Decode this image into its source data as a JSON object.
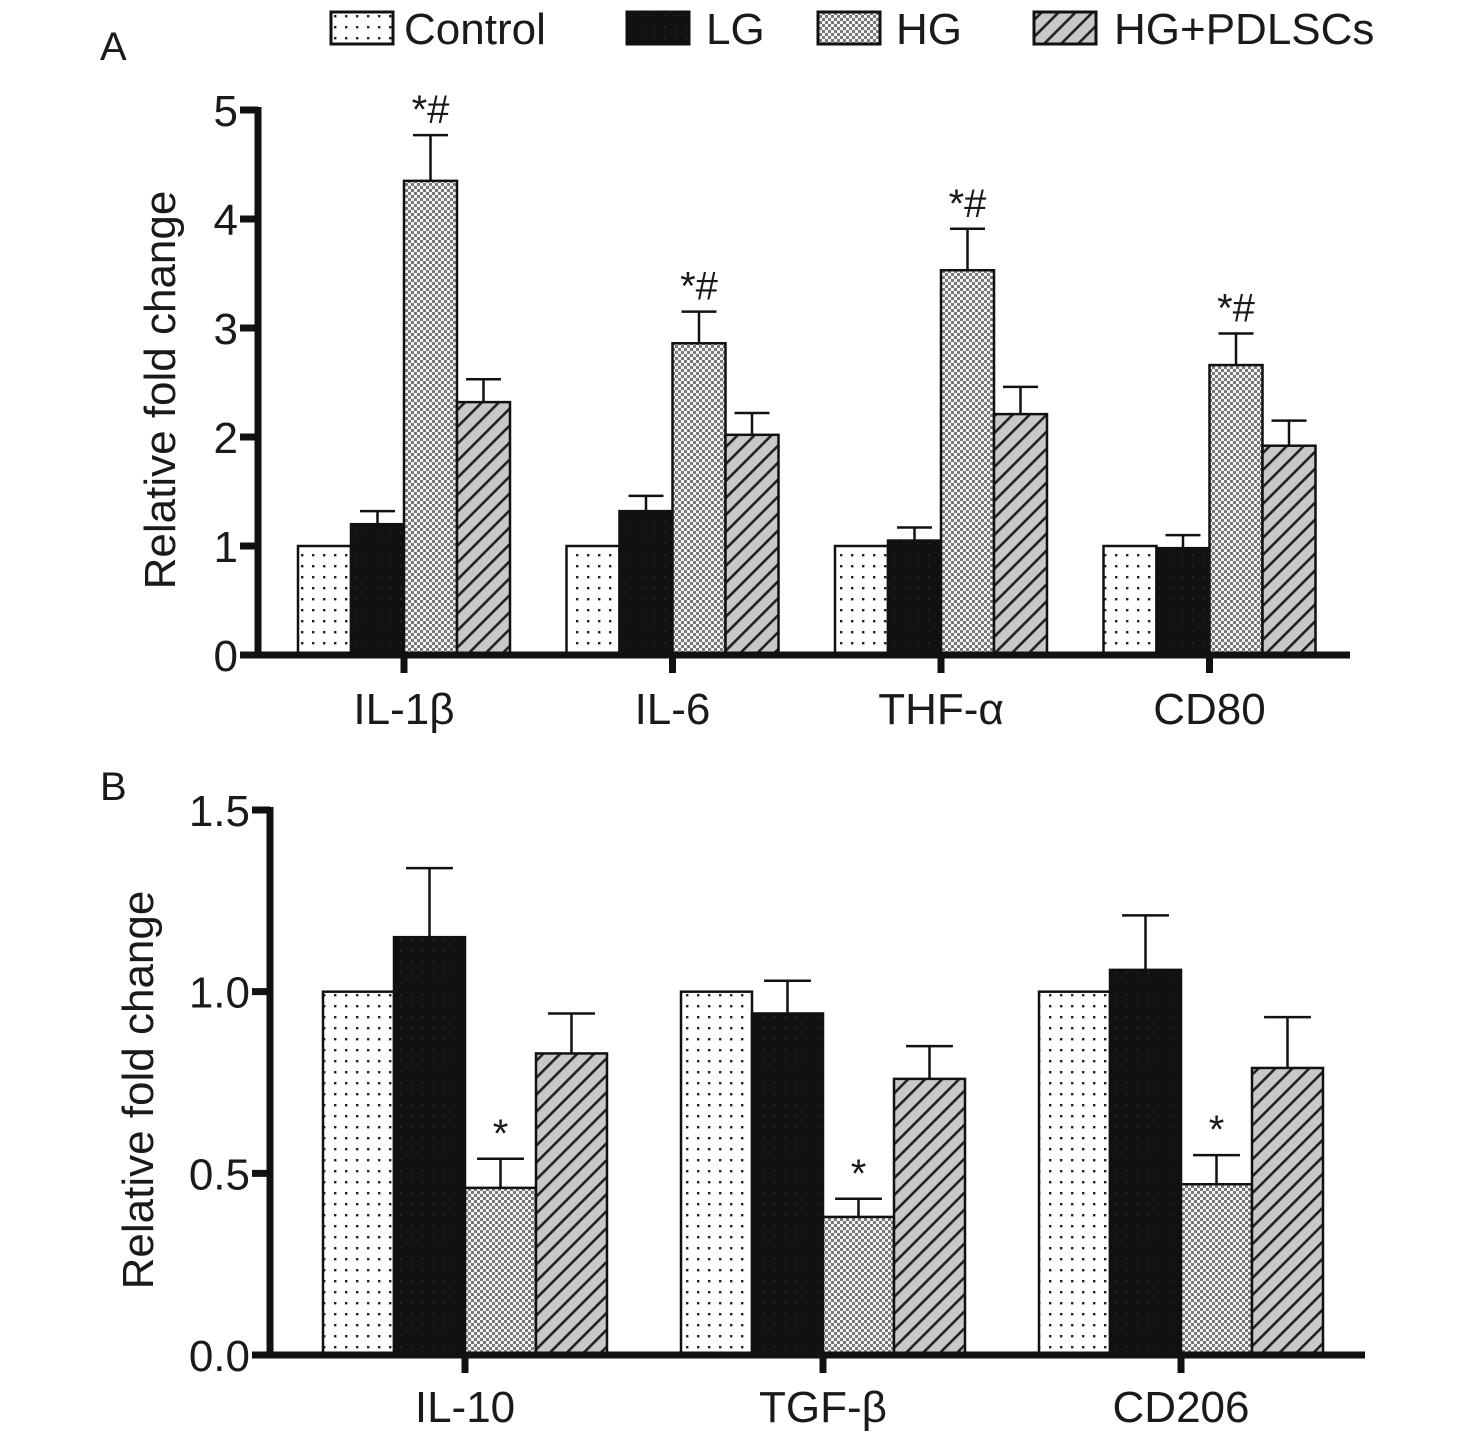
{
  "legend": {
    "placement": "top",
    "items": [
      {
        "label": "Control",
        "pattern": "dots"
      },
      {
        "label": "LG",
        "pattern": "solid-black"
      },
      {
        "label": "HG",
        "pattern": "checker"
      },
      {
        "label": "HG+PDLSCs",
        "pattern": "diagonal-hatch"
      }
    ]
  },
  "colors": {
    "axis": "#111111",
    "lg_fill": "#111111",
    "checker_dark": "#7a7a7a",
    "hatch_bg": "#c8c8c8"
  },
  "chart_data": [
    {
      "panel_label": "A",
      "type": "bar",
      "title": "",
      "xlabel": "",
      "ylabel": "Relative fold change",
      "ylim": [
        0,
        5
      ],
      "yticks": [
        0,
        1,
        2,
        3,
        4,
        5
      ],
      "ytick_labels": [
        "0",
        "1",
        "2",
        "3",
        "4",
        "5"
      ],
      "grid": false,
      "categories": [
        "IL-1β",
        "IL-6",
        "THF-α",
        "CD80"
      ],
      "series": [
        {
          "name": "Control",
          "values": [
            1.0,
            1.0,
            1.0,
            1.0
          ],
          "error_upper": [
            null,
            null,
            null,
            null
          ]
        },
        {
          "name": "LG",
          "values": [
            1.2,
            1.32,
            1.05,
            0.98
          ],
          "error_upper": [
            0.12,
            0.14,
            0.12,
            0.12
          ]
        },
        {
          "name": "HG",
          "values": [
            4.35,
            2.86,
            3.53,
            2.66
          ],
          "error_upper": [
            0.42,
            0.29,
            0.38,
            0.29
          ]
        },
        {
          "name": "HG+PDLSCs",
          "values": [
            2.32,
            2.02,
            2.21,
            1.92
          ],
          "error_upper": [
            0.21,
            0.2,
            0.25,
            0.23
          ]
        }
      ],
      "annotations": [
        {
          "category": "IL-1β",
          "series": "HG",
          "text": "*#"
        },
        {
          "category": "IL-6",
          "series": "HG",
          "text": "*#"
        },
        {
          "category": "THF-α",
          "series": "HG",
          "text": "*#"
        },
        {
          "category": "CD80",
          "series": "HG",
          "text": "*#"
        }
      ]
    },
    {
      "panel_label": "B",
      "type": "bar",
      "title": "",
      "xlabel": "",
      "ylabel": "Relative fold change",
      "ylim": [
        0,
        1.5
      ],
      "yticks": [
        0,
        0.5,
        1.0,
        1.5
      ],
      "ytick_labels": [
        "0.0",
        "0.5",
        "1.0",
        "1.5"
      ],
      "grid": false,
      "categories": [
        "IL-10",
        "TGF-β",
        "CD206"
      ],
      "series": [
        {
          "name": "Control",
          "values": [
            1.0,
            1.0,
            1.0
          ],
          "error_upper": [
            null,
            null,
            null
          ]
        },
        {
          "name": "LG",
          "values": [
            1.15,
            0.94,
            1.06
          ],
          "error_upper": [
            0.19,
            0.09,
            0.15
          ]
        },
        {
          "name": "HG",
          "values": [
            0.46,
            0.38,
            0.47
          ],
          "error_upper": [
            0.08,
            0.05,
            0.08
          ]
        },
        {
          "name": "HG+PDLSCs",
          "values": [
            0.83,
            0.76,
            0.79
          ],
          "error_upper": [
            0.11,
            0.09,
            0.14
          ]
        }
      ],
      "annotations": [
        {
          "category": "IL-10",
          "series": "HG",
          "text": "*"
        },
        {
          "category": "TGF-β",
          "series": "HG",
          "text": "*"
        },
        {
          "category": "CD206",
          "series": "HG",
          "text": "*"
        }
      ]
    }
  ]
}
